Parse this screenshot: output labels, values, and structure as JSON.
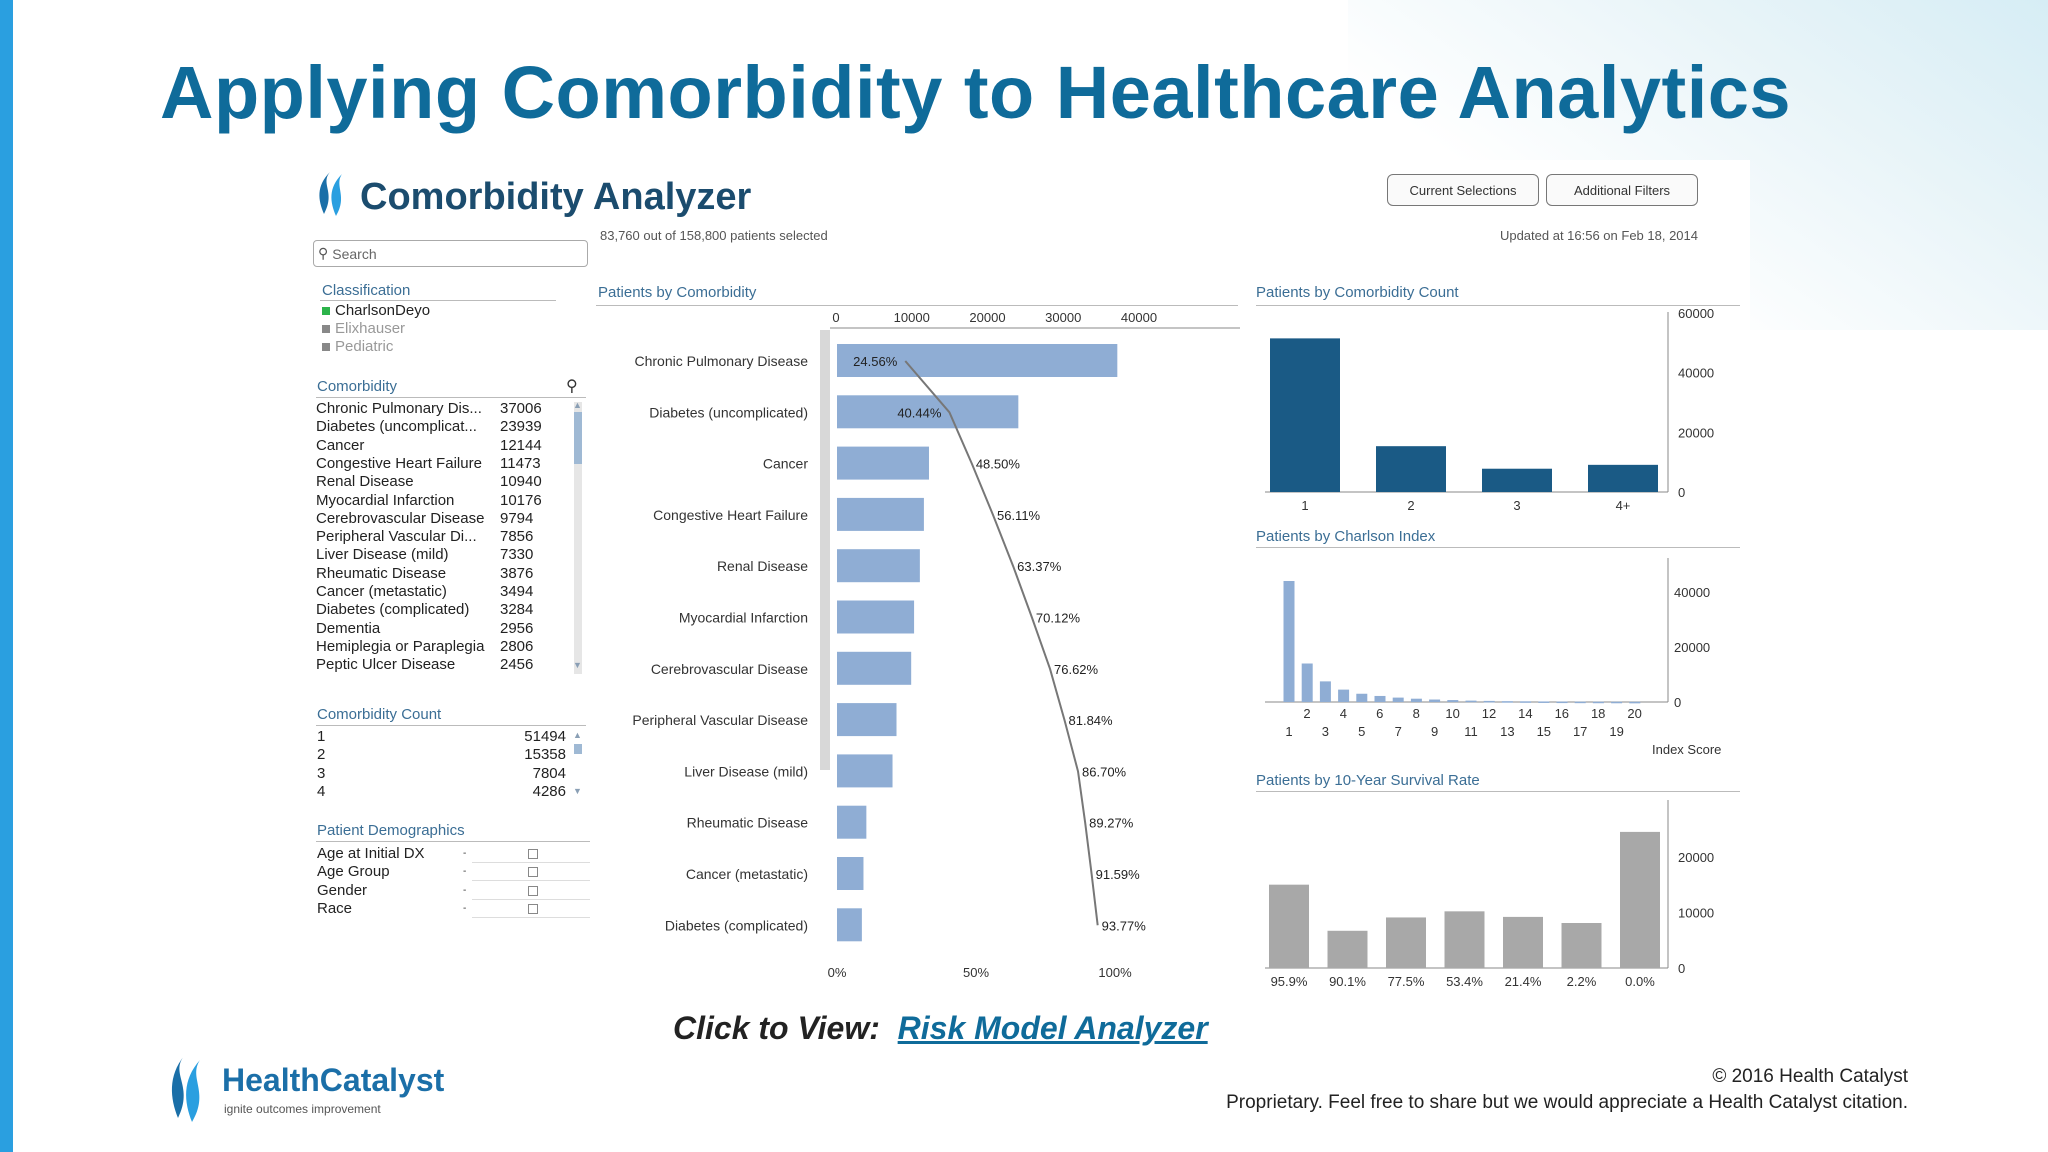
{
  "slide": {
    "title": "Applying Comorbidity to Healthcare Analytics",
    "cta_label": "Click to View:",
    "cta_link": "Risk Model Analyzer",
    "copyright": "© 2016 Health Catalyst",
    "proprietary": "Proprietary. Feel free to share but we would appreciate a Health Catalyst citation.",
    "brand_name": "HealthCatalyst",
    "brand_tagline": "ignite outcomes improvement"
  },
  "app": {
    "title": "Comorbidity Analyzer",
    "selection_count": "83,760 out of 158,800 patients selected",
    "updated": "Updated at 16:56 on Feb 18, 2014",
    "buttons": {
      "current": "Current Selections",
      "filters": "Additional Filters"
    },
    "search_placeholder": "Search",
    "icons": {
      "search": "magnifier-icon",
      "logo": "flame-logo-icon"
    },
    "colors": {
      "accent": "#3b6e95",
      "bar_blue": "#8fadd4",
      "bar_dark": "#1a5a85",
      "bar_gray": "#a8a8a8"
    }
  },
  "classification": {
    "header": "Classification",
    "items": [
      {
        "label": "CharlsonDeyo",
        "color": "#2cb34a"
      },
      {
        "label": "Elixhauser",
        "color": "#888888"
      },
      {
        "label": "Pediatric",
        "color": "#888888"
      }
    ]
  },
  "comorbidity_list": {
    "header": "Comorbidity",
    "items": [
      {
        "label": "Chronic Pulmonary Dis...",
        "value": "37006"
      },
      {
        "label": "Diabetes (uncomplicat...",
        "value": "23939"
      },
      {
        "label": "Cancer",
        "value": "12144"
      },
      {
        "label": "Congestive Heart Failure",
        "value": "11473"
      },
      {
        "label": "Renal Disease",
        "value": "10940"
      },
      {
        "label": "Myocardial Infarction",
        "value": "10176"
      },
      {
        "label": "Cerebrovascular Disease",
        "value": "9794"
      },
      {
        "label": "Peripheral Vascular Di...",
        "value": "7856"
      },
      {
        "label": "Liver Disease (mild)",
        "value": "7330"
      },
      {
        "label": "Rheumatic Disease",
        "value": "3876"
      },
      {
        "label": "Cancer (metastatic)",
        "value": "3494"
      },
      {
        "label": "Diabetes (complicated)",
        "value": "3284"
      },
      {
        "label": "Dementia",
        "value": "2956"
      },
      {
        "label": "Hemiplegia or Paraplegia",
        "value": "2806"
      },
      {
        "label": "Peptic Ulcer Disease",
        "value": "2456"
      }
    ]
  },
  "comorbidity_count": {
    "header": "Comorbidity Count",
    "items": [
      {
        "label": "1",
        "value": "51494"
      },
      {
        "label": "2",
        "value": "15358"
      },
      {
        "label": "3",
        "value": "7804"
      },
      {
        "label": "4",
        "value": "4286"
      }
    ]
  },
  "demographics": {
    "header": "Patient Demographics",
    "items": [
      "Age at Initial DX",
      "Age Group",
      "Gender",
      "Race"
    ]
  },
  "chart_data": [
    {
      "type": "bar",
      "title": "Patients by Comorbidity",
      "orientation": "horizontal",
      "categories": [
        "Chronic Pulmonary Disease",
        "Diabetes (uncomplicated)",
        "Cancer",
        "Congestive Heart Failure",
        "Renal Disease",
        "Myocardial Infarction",
        "Cerebrovascular Disease",
        "Peripheral Vascular Disease",
        "Liver Disease (mild)",
        "Rheumatic Disease",
        "Cancer (metastatic)",
        "Diabetes (complicated)"
      ],
      "values": [
        37006,
        23939,
        12144,
        11473,
        10940,
        10176,
        9794,
        7856,
        7330,
        3876,
        3494,
        3284
      ],
      "xticks": [
        "0",
        "10000",
        "20000",
        "30000",
        "40000"
      ],
      "xlim": [
        0,
        45000
      ],
      "cumulative_labels": [
        "24.56%",
        "40.44%",
        "48.50%",
        "56.11%",
        "63.37%",
        "70.12%",
        "76.62%",
        "81.84%",
        "86.70%",
        "89.27%",
        "91.59%",
        "93.77%"
      ],
      "cumulative": [
        24.56,
        40.44,
        48.5,
        56.11,
        63.37,
        70.12,
        76.62,
        81.84,
        86.7,
        89.27,
        91.59,
        93.77
      ],
      "pct_ticks": [
        "0%",
        "50%",
        "100%"
      ]
    },
    {
      "type": "bar",
      "title": "Patients by Comorbidity Count",
      "categories": [
        "1",
        "2",
        "3",
        "4+"
      ],
      "values": [
        51494,
        15358,
        7804,
        9104
      ],
      "yticks": [
        "60000",
        "40000",
        "20000",
        "0"
      ],
      "ylim": [
        0,
        60000
      ]
    },
    {
      "type": "bar",
      "title": "Patients by Charlson Index",
      "categories": [
        "1",
        "2",
        "3",
        "4",
        "5",
        "6",
        "7",
        "8",
        "9",
        "10",
        "11",
        "12",
        "13",
        "14",
        "15",
        "16",
        "17",
        "18",
        "19",
        "20"
      ],
      "values": [
        44000,
        14000,
        7500,
        4500,
        3000,
        2200,
        1600,
        1200,
        900,
        700,
        500,
        400,
        300,
        250,
        200,
        150,
        120,
        100,
        80,
        60
      ],
      "xticks_top": [
        "2",
        "4",
        "6",
        "8",
        "10",
        "12",
        "14",
        "16",
        "18",
        "20"
      ],
      "xticks_bottom": [
        "1",
        "3",
        "5",
        "7",
        "9",
        "11",
        "13",
        "15",
        "17",
        "19"
      ],
      "yticks": [
        "40000",
        "20000",
        "0"
      ],
      "ylim": [
        0,
        48000
      ],
      "xlabel": "Index Score"
    },
    {
      "type": "bar",
      "title": "Patients by 10-Year Survival Rate",
      "categories": [
        "95.9%",
        "90.1%",
        "77.5%",
        "53.4%",
        "21.4%",
        "2.2%",
        "0.0%"
      ],
      "values": [
        15000,
        6700,
        9100,
        10200,
        9200,
        8100,
        24500
      ],
      "yticks": [
        "20000",
        "10000",
        "0"
      ],
      "ylim": [
        0,
        27000
      ]
    }
  ]
}
